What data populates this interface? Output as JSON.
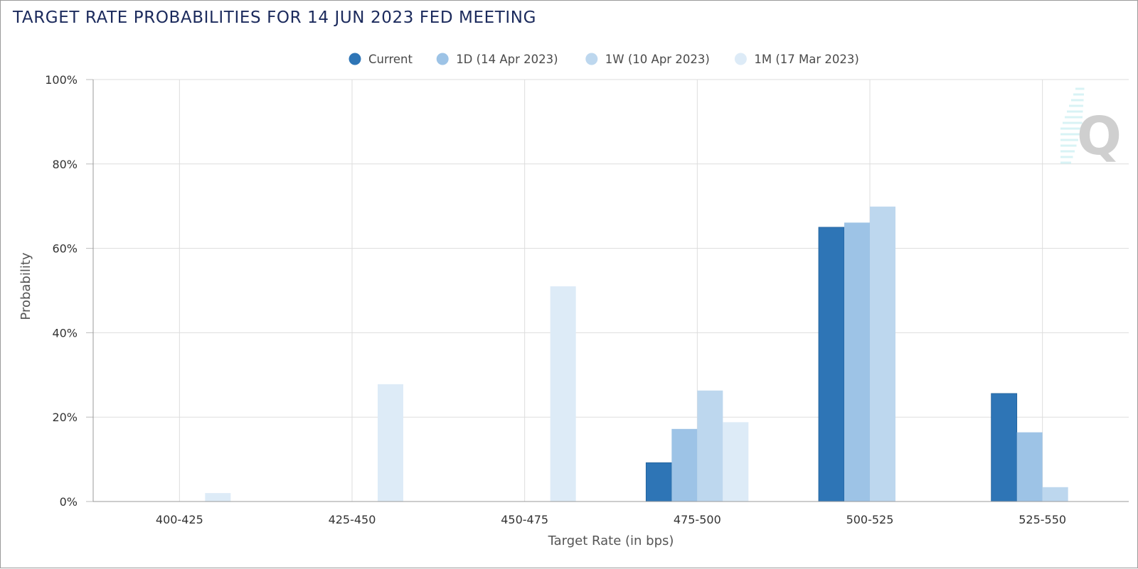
{
  "chart_data": {
    "type": "bar",
    "title": "TARGET RATE PROBABILITIES FOR 14 JUN 2023 FED MEETING",
    "xlabel": "Target Rate (in bps)",
    "ylabel": "Probability",
    "categories": [
      "400-425",
      "425-450",
      "450-475",
      "475-500",
      "500-525",
      "525-550"
    ],
    "yticks": [
      "0%",
      "20%",
      "40%",
      "60%",
      "80%",
      "100%"
    ],
    "ylim": [
      0,
      100
    ],
    "grid": true,
    "legend_position": "top-center",
    "series": [
      {
        "name": "Current",
        "color": "#2e75b6",
        "values": [
          0,
          0,
          0,
          9.2,
          65.0,
          25.6
        ]
      },
      {
        "name": "1D (14 Apr 2023)",
        "color": "#9dc3e6",
        "values": [
          0,
          0,
          0,
          17.2,
          66.1,
          16.4
        ]
      },
      {
        "name": "1W (10 Apr 2023)",
        "color": "#bdd7ee",
        "values": [
          0,
          0,
          0,
          26.3,
          69.9,
          3.4
        ]
      },
      {
        "name": "1M (17 Mar 2023)",
        "color": "#ddebf7",
        "values": [
          2.0,
          27.8,
          51.0,
          18.8,
          0,
          0
        ]
      }
    ]
  },
  "watermark": {
    "letter": "Q"
  }
}
